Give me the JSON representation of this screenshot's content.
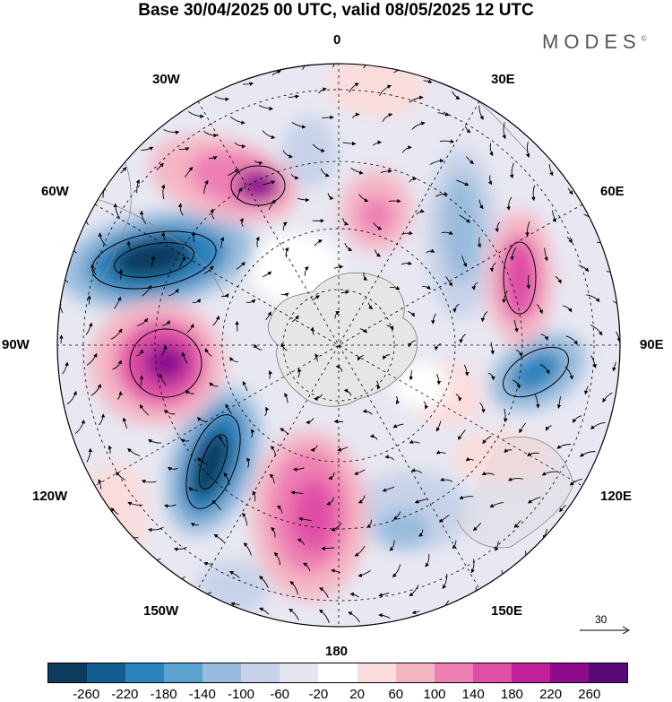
{
  "title": "Base 30/04/2025 00 UTC, valid 08/05/2025 12 UTC",
  "logo": {
    "text": "MODES",
    "mark": "©"
  },
  "longitude_labels": {
    "n0": "0",
    "e30": "30E",
    "e60": "60E",
    "e90": "90E",
    "e120": "120E",
    "e150": "150E",
    "s180": "180",
    "w150": "150W",
    "w120": "120W",
    "w90": "90W",
    "w60": "60W",
    "w30": "30W"
  },
  "reference_vector": {
    "label": "30"
  },
  "colorbar": {
    "colors": [
      "#0d3b5e",
      "#135e91",
      "#2b84bd",
      "#5aa3cf",
      "#98bcdd",
      "#c7d2e8",
      "#e6e6f1",
      "#ffffff",
      "#fbdcdc",
      "#f5b6c4",
      "#ee7fb3",
      "#e04ea6",
      "#c0209a",
      "#8e0b8e",
      "#5a0a78"
    ],
    "ticks": [
      "-260",
      "-220",
      "-180",
      "-140",
      "-100",
      "-60",
      "-20",
      "20",
      "60",
      "100",
      "140",
      "180",
      "220",
      "260"
    ]
  },
  "icons": {
    "projection": "polar-stereographic-south",
    "antarctica": "antarctica-landmass"
  }
}
